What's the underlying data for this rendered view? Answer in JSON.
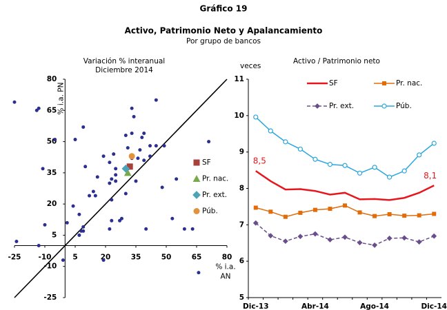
{
  "header": {
    "label": "Gráfico 19",
    "title": "Activo, Patrimonio Neto y Apalancamiento",
    "subtitle": "Por grupo de bancos"
  },
  "chart_data": [
    {
      "type": "scatter",
      "title": "Variación % interanual",
      "subtitle": "Diciembre 2014",
      "xlabel": [
        "% i.a.",
        "AN"
      ],
      "ylabel": "% i.a. PN",
      "xlim": [
        -25,
        80
      ],
      "ylim": [
        -25,
        80
      ],
      "xticks": [
        -25,
        -10,
        5,
        20,
        35,
        50,
        65,
        80
      ],
      "yticks": [
        -25,
        -10,
        5,
        20,
        35,
        50,
        65,
        80
      ],
      "diagonal": true,
      "legend": "right",
      "series": [
        {
          "color": "#2b2f8f",
          "marker": "circle",
          "x": [
            -25,
            -14,
            -13,
            -11,
            -24,
            -13,
            -10,
            -1,
            -5,
            5,
            9,
            10,
            4,
            1,
            7,
            9,
            8,
            9,
            7,
            12,
            14,
            15,
            19,
            16,
            19,
            22,
            22,
            23,
            23,
            25,
            24,
            25,
            25,
            23,
            22,
            28,
            27,
            30,
            30,
            31,
            33,
            33,
            34,
            31,
            33,
            35,
            36,
            38,
            39,
            37,
            39,
            42,
            40,
            42,
            45,
            45,
            49,
            48,
            53,
            55,
            59,
            63,
            66,
            71
          ],
          "y": [
            69,
            65,
            66,
            37,
            2,
            0,
            10,
            -7,
            51,
            51,
            57,
            38,
            19,
            11,
            15,
            9,
            7,
            7,
            5,
            24,
            26,
            24,
            -7,
            33,
            43,
            40,
            30,
            32,
            22,
            37,
            44,
            31,
            34,
            12,
            8,
            13,
            12,
            25,
            53,
            37,
            66,
            54,
            62,
            47,
            42,
            31,
            42,
            52,
            54,
            46,
            41,
            43,
            8,
            48,
            70,
            48,
            48,
            28,
            13,
            32,
            8,
            8,
            -13,
            50
          ]
        },
        {
          "name": "SF",
          "color": "#a8403c",
          "marker": "square",
          "x": [
            32
          ],
          "y": [
            38
          ]
        },
        {
          "name": "Pr. nac.",
          "color": "#7aa84c",
          "marker": "triangle",
          "x": [
            31
          ],
          "y": [
            35
          ]
        },
        {
          "name": "Pr. ext.",
          "color": "#4ba3b5",
          "marker": "diamond",
          "x": [
            30
          ],
          "y": [
            37
          ]
        },
        {
          "name": "Púb.",
          "color": "#e3923c",
          "marker": "circle",
          "x": [
            33
          ],
          "y": [
            43
          ]
        }
      ]
    },
    {
      "type": "line",
      "title": "Activo / Patrimonio neto",
      "ylabel": "veces",
      "categories": [
        "Dic-13",
        null,
        null,
        null,
        "Abr-14",
        null,
        null,
        null,
        "Ago-14",
        null,
        null,
        null,
        "Dic-14"
      ],
      "ylim": [
        5,
        11
      ],
      "yticks": [
        5,
        6,
        7,
        8,
        9,
        10,
        11
      ],
      "legend": "top",
      "series": [
        {
          "name": "SF",
          "color": "#e8161c",
          "marker": "none",
          "width": 2.5,
          "values": [
            8.48,
            8.2,
            7.97,
            7.98,
            7.93,
            7.83,
            7.88,
            7.7,
            7.71,
            7.68,
            7.74,
            7.88,
            8.08
          ],
          "value_labels": [
            "8,5",
            null,
            null,
            null,
            null,
            null,
            null,
            null,
            null,
            null,
            null,
            null,
            "8,1"
          ]
        },
        {
          "name": "Pr. nac.",
          "color": "#e06c0a",
          "marker": "square",
          "width": 1.5,
          "values": [
            7.47,
            7.36,
            7.22,
            7.33,
            7.41,
            7.44,
            7.53,
            7.34,
            7.24,
            7.29,
            7.25,
            7.26,
            7.3
          ]
        },
        {
          "name": "Pr. ext.",
          "color": "#6a4e8c",
          "marker": "diamond",
          "width": 1.5,
          "dash": true,
          "values": [
            7.05,
            6.7,
            6.55,
            6.68,
            6.75,
            6.59,
            6.66,
            6.51,
            6.44,
            6.63,
            6.64,
            6.53,
            6.69
          ]
        },
        {
          "name": "Púb.",
          "color": "#2aa6dc",
          "marker": "open-circle",
          "width": 1.5,
          "values": [
            9.96,
            9.58,
            9.28,
            9.08,
            8.8,
            8.66,
            8.63,
            8.42,
            8.58,
            8.31,
            8.48,
            8.92,
            9.24
          ]
        }
      ]
    }
  ]
}
